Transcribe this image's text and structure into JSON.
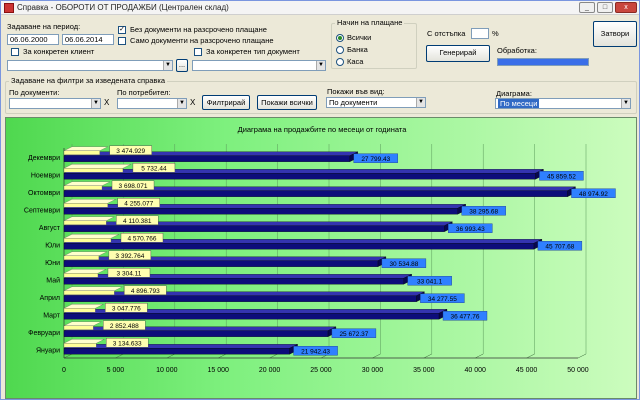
{
  "window": {
    "title": "Справка - ОБОРОТИ ОТ ПРОДАЖБИ (Централен склад)",
    "minimize_label": "_",
    "maximize_label": "□",
    "close_label": "x"
  },
  "period": {
    "label": "Задаване на период:",
    "date_from": "06.06.2000",
    "date_to": "06.06.2014"
  },
  "client_filter": {
    "label": "За конкретен клиент",
    "checked": "",
    "value": "",
    "browse_label": "..."
  },
  "options": {
    "no_installment": {
      "label": "Без документи на разсрочено плащане",
      "checked": "✓"
    },
    "only_installment": {
      "label": "Само документи на разсрочено плащане",
      "checked": ""
    },
    "doc_type": {
      "label": "За конкретен тип документ",
      "checked": "",
      "value": ""
    }
  },
  "payment": {
    "title": "Начин на плащане",
    "options": [
      "Всички",
      "Банка",
      "Каса"
    ],
    "selected": "Всички"
  },
  "discount": {
    "label": "С отстъпка",
    "value": "",
    "unit": "%"
  },
  "generate_label": "Генерирай",
  "processing_label": "Обработка:",
  "processing_fill": 1.0,
  "close_label": "Затвори",
  "report_filters": {
    "title": "Задаване на филтри за изведената справка",
    "by_docs_label": "По документи:",
    "by_docs_value": "",
    "by_users_label": "По потребител:",
    "by_users_value": "",
    "clear_label": "X",
    "filter_label": "Филтрирай",
    "show_all_label": "Покажи всички",
    "view_label": "Покажи във вид:",
    "view_value": "По документи",
    "diagram_label": "Диаграма:",
    "diagram_value": "По месеци"
  },
  "colors": {
    "bar_dark": "#0d0d7a",
    "bar_light": "#ffff99",
    "label_blue": "#2f80ff",
    "label_yellow": "#ffffb0"
  },
  "chart_data": {
    "type": "bar",
    "orientation": "horizontal",
    "title": "Диаграма на продажбите по месеци от годината",
    "categories": [
      "Декември",
      "Ноември",
      "Октомври",
      "Септември",
      "Август",
      "Юли",
      "Юни",
      "Май",
      "Април",
      "Март",
      "Февруари",
      "Януари"
    ],
    "series": [
      {
        "values": [
          3474.929,
          5732.44,
          3698.071,
          4255.077,
          4110.381,
          4570.766,
          3392.764,
          3304.11,
          4896.793,
          3047.776,
          2852.488,
          3134.633
        ],
        "labels": [
          "3 474.929",
          "5 732.44",
          "3 698.071",
          "4 255.077",
          "4 110.381",
          "4 570.766",
          "3 392.764",
          "3 304.11",
          "4 896.793",
          "3 047.776",
          "2 852.488",
          "3 134.633"
        ]
      },
      {
        "values": [
          27799.43,
          45859.52,
          48974.92,
          38295.68,
          36993.43,
          45707.68,
          30534.88,
          33041.1,
          34277.55,
          36477.76,
          25672.37,
          21942.43
        ],
        "labels": [
          "27 799.43",
          "45 859.52",
          "48 974.92",
          "38 295.68",
          "36 993.43",
          "45 707.68",
          "30 534.88",
          "33 041.1",
          "34 277.55",
          "36 477.76",
          "25 672.37",
          "21 942.43"
        ]
      }
    ],
    "xlim": [
      0,
      50000
    ],
    "xticks": [
      "0",
      "5 000",
      "10 000",
      "15 000",
      "20 000",
      "25 000",
      "30 000",
      "35 000",
      "40 000",
      "45 000",
      "50 000"
    ],
    "grid": true,
    "legend": "none"
  }
}
